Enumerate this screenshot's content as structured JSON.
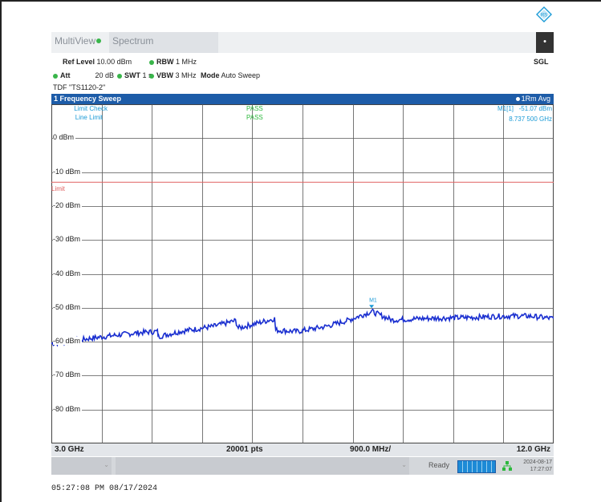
{
  "tabs": {
    "multiview_label": "MultiView",
    "spectrum_label": "Spectrum",
    "sgl_label": "SGL"
  },
  "settings": {
    "ref_level_label": "Ref Level",
    "ref_level_value": "10.00 dBm",
    "rbw_label": "RBW",
    "rbw_value": "1 MHz",
    "att_label": "Att",
    "att_value": "20 dB",
    "swt_label": "SWT",
    "swt_value": "1 s",
    "vbw_label": "VBW",
    "vbw_value": "3 MHz",
    "mode_label": "Mode",
    "mode_value": "Auto Sweep",
    "tdf_text": "TDF \"TS1120-2\""
  },
  "sweep": {
    "window_title": "1 Frequency Sweep",
    "trace_label": "1Rm Avg"
  },
  "checks": {
    "limit_check_label": "Limit Check",
    "limit_check_result": "PASS",
    "line_limit_label": "Line Limit",
    "line_limit_result": "PASS",
    "limit_line_label": "Limit"
  },
  "marker": {
    "id": "M1[1]",
    "level": "-51.07 dBm",
    "frequency": "8.737 500 GHz",
    "plot_label": "M1"
  },
  "axis": {
    "y_labels": [
      "0 dBm",
      "-10 dBm",
      "-20 dBm",
      "-30 dBm",
      "-40 dBm",
      "-50 dBm",
      "-60 dBm",
      "-70 dBm",
      "-80 dBm"
    ],
    "start_freq": "3.0 GHz",
    "points": "20001 pts",
    "span_per_div": "900.0 MHz/",
    "stop_freq": "12.0 GHz"
  },
  "status": {
    "ready_text": "Ready",
    "date": "2024-08-17",
    "time": "17:27:07"
  },
  "capture_timestamp": "05:27:08 PM  08/17/2024",
  "colors": {
    "trace": "#1a2fd0",
    "limit_line": "#e06060",
    "pass": "#2db83d",
    "marker": "#1a9ad6",
    "title_bar": "#1d5ca8"
  },
  "chart_data": {
    "type": "line",
    "xlim": [
      3.0,
      12.0
    ],
    "ylim": [
      -90,
      10
    ],
    "limit_dbm": -13,
    "marker": {
      "x": 8.7375,
      "y": -51.07
    },
    "series": [
      {
        "x": [
          3.0,
          3.3,
          3.7,
          4.2,
          4.6,
          4.9,
          4.92,
          5.3,
          5.9,
          6.3,
          6.35,
          6.7,
          7.0,
          7.02,
          7.4,
          7.9,
          8.3,
          8.74,
          9.1,
          9.6,
          10.1,
          10.6,
          11.0,
          11.4,
          11.6,
          12.0
        ],
        "y": [
          -60.5,
          -60.0,
          -59.0,
          -58.0,
          -57.3,
          -57.0,
          -58.5,
          -57.0,
          -55.5,
          -53.8,
          -56.0,
          -54.5,
          -53.2,
          -56.6,
          -57.0,
          -55.6,
          -53.8,
          -51.1,
          -53.6,
          -53.2,
          -53.0,
          -52.8,
          -52.5,
          -52.4,
          -52.5,
          -53.2
        ]
      }
    ]
  }
}
